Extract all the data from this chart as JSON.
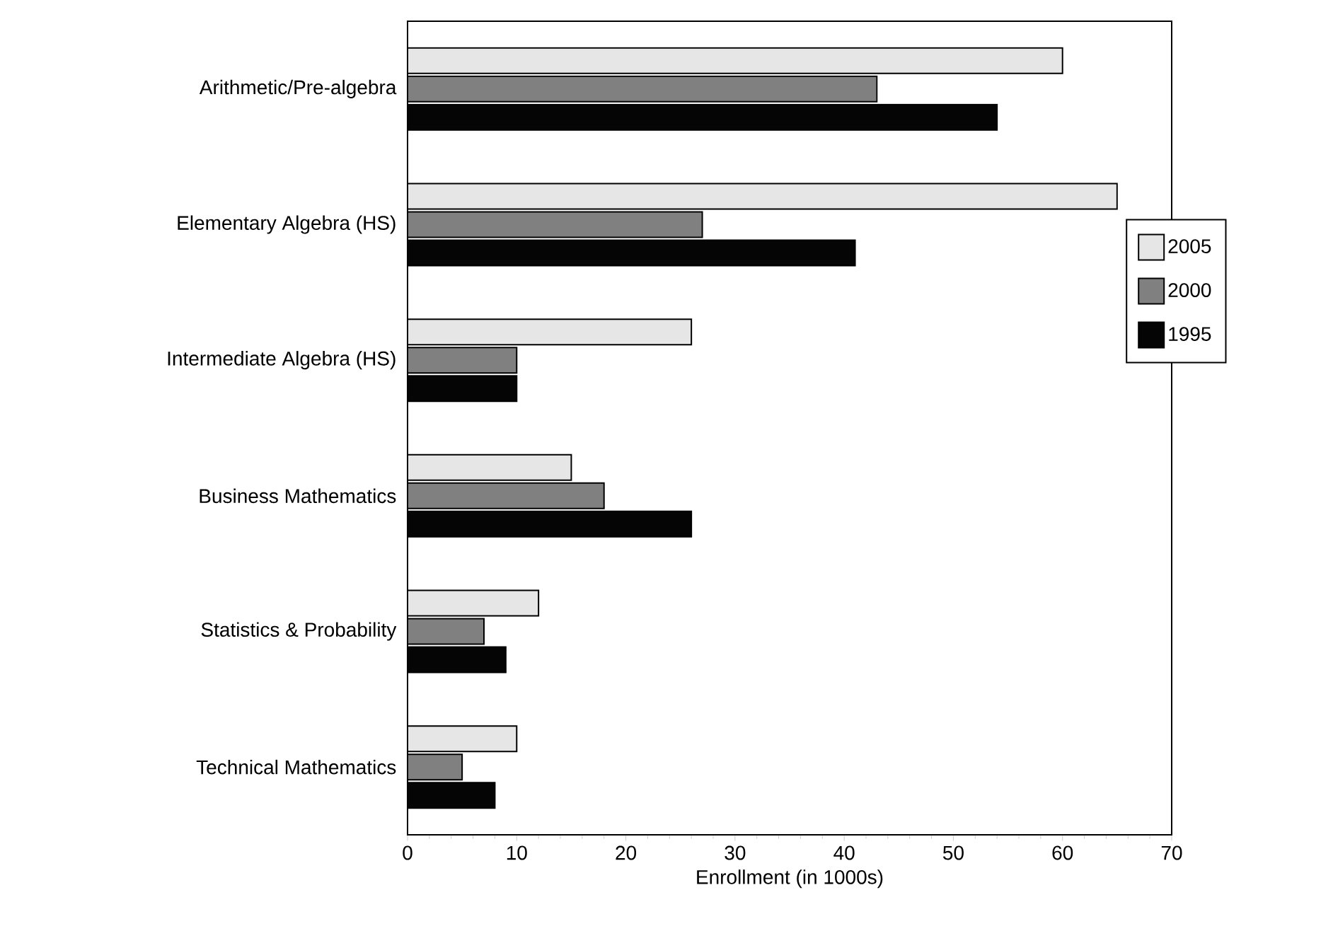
{
  "chart_data": {
    "type": "bar",
    "orientation": "horizontal",
    "xlabel": "Enrollment (in 1000s)",
    "categories": [
      "Arithmetic/Pre-algebra",
      "Elementary Algebra (HS)",
      "Intermediate Algebra (HS)",
      "Business Mathematics",
      "Statistics & Probability",
      "Technical Mathematics"
    ],
    "series": [
      {
        "name": "2005",
        "color": "#e6e6e6",
        "values": [
          60,
          65,
          26,
          15,
          12,
          10
        ]
      },
      {
        "name": "2000",
        "color": "#808080",
        "values": [
          43,
          27,
          10,
          18,
          7,
          5
        ]
      },
      {
        "name": "1995",
        "color": "#050505",
        "values": [
          54,
          41,
          10,
          26,
          9,
          8
        ]
      }
    ],
    "xlim": [
      0,
      70
    ],
    "xticks": [
      0,
      10,
      20,
      30,
      40,
      50,
      60,
      70
    ],
    "grid": false,
    "legend": "right"
  }
}
